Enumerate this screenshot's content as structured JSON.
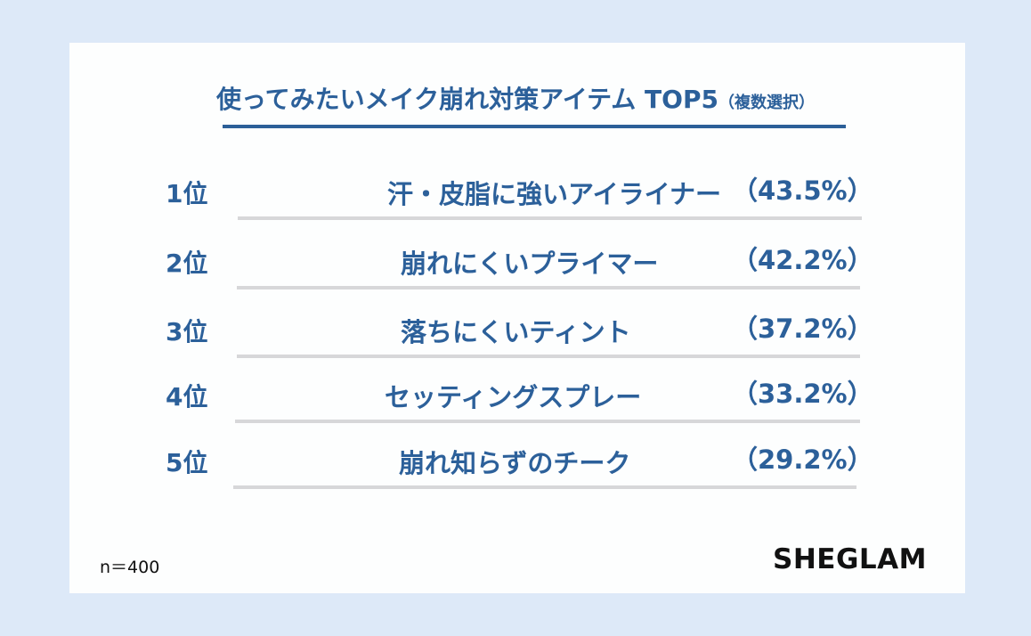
{
  "title": {
    "main": "使ってみたいメイク崩れ対策アイテム TOP5",
    "note": "（複数選択）"
  },
  "chart_data": {
    "type": "table",
    "title": "使ってみたいメイク崩れ対策アイテム TOP5",
    "subtitle": "（複数選択）",
    "rows": [
      {
        "rank": "1位",
        "item": "汗・皮脂に強いアイライナー",
        "percent_label": "（43.5%）",
        "value": 43.5
      },
      {
        "rank": "2位",
        "item": "崩れにくいプライマー",
        "percent_label": "（42.2%）",
        "value": 42.2
      },
      {
        "rank": "3位",
        "item": "落ちにくいティント",
        "percent_label": "（37.2%）",
        "value": 37.2
      },
      {
        "rank": "4位",
        "item": "セッティングスプレー",
        "percent_label": "（33.2%）",
        "value": 33.2
      },
      {
        "rank": "5位",
        "item": "崩れ知らずのチーク",
        "percent_label": "（29.2%）",
        "value": 29.2
      }
    ]
  },
  "footnote": "n＝400",
  "brand": "SHEGLAM",
  "colors": {
    "text_blue": "#2c609a",
    "underline_blue": "#2c5f98",
    "bar_gray": "#d7d7d9",
    "background": "#dde9f8",
    "card": "#fdfefe"
  }
}
